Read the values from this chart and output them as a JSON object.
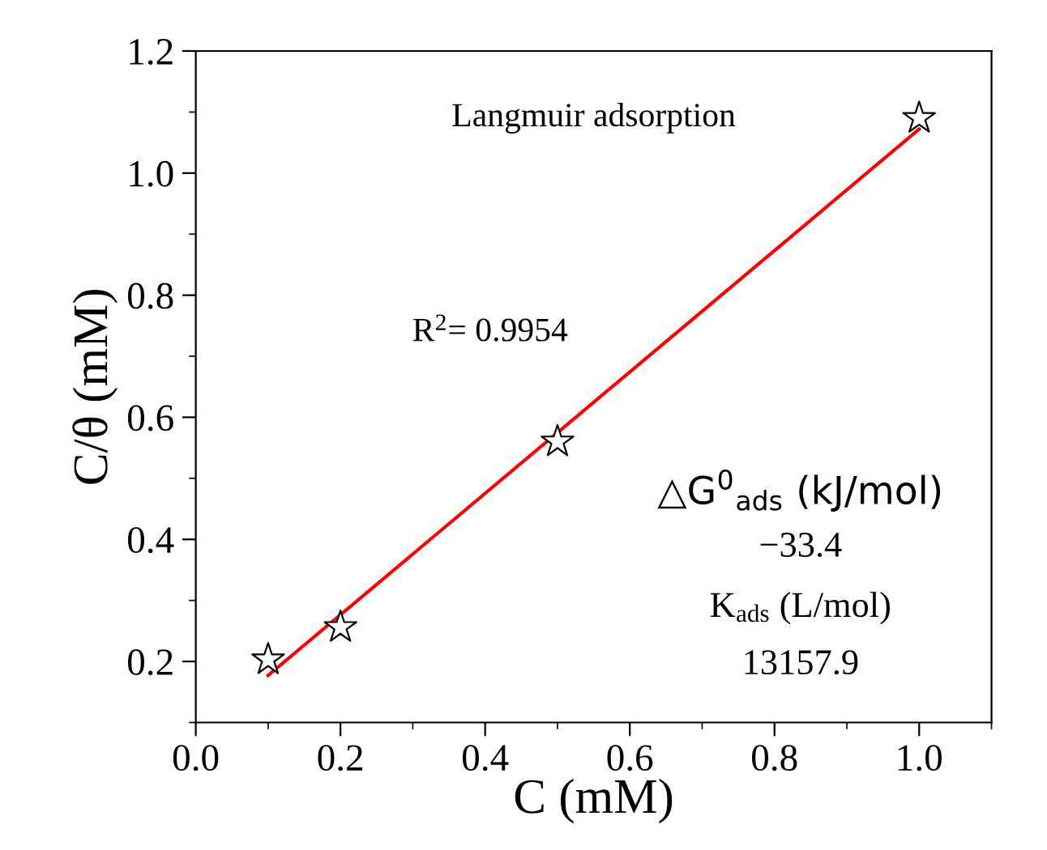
{
  "chart_data": {
    "type": "scatter",
    "xlabel": "C (mM)",
    "ylabel": "C/θ (mM)",
    "xlim": [
      0.0,
      1.1
    ],
    "xticks": [
      {
        "value": 0.0,
        "label": "0.0"
      },
      0.2,
      0.4,
      0.6,
      0.8,
      {
        "value": 1.0,
        "label": "1.0"
      }
    ],
    "ylim": [
      0.1,
      1.2
    ],
    "yticks": [
      0.2,
      0.4,
      0.6,
      0.8,
      {
        "value": 1.0,
        "label": "1.0"
      },
      1.2
    ],
    "marker": "star",
    "grid": false,
    "legend": false,
    "series": [
      {
        "color": "#000000",
        "x": [
          0.1,
          0.2,
          0.5,
          1.0
        ],
        "values": [
          0.203,
          0.256,
          0.56,
          1.09
        ]
      },
      {
        "type": "line",
        "color": "#ff0000",
        "marker": "none",
        "line_style": "solid",
        "x": [
          0.1,
          1.0
        ],
        "values": [
          0.177,
          1.072
        ]
      }
    ],
    "annotations": [
      "Langmuir adsorption",
      "R$^{2}$= 0.9954",
      "△G$^{0}$$_{ads}$ (kJ/mol)",
      "−33.4",
      "K$_{ads}$ (L/mol)",
      "13157.9"
    ]
  }
}
